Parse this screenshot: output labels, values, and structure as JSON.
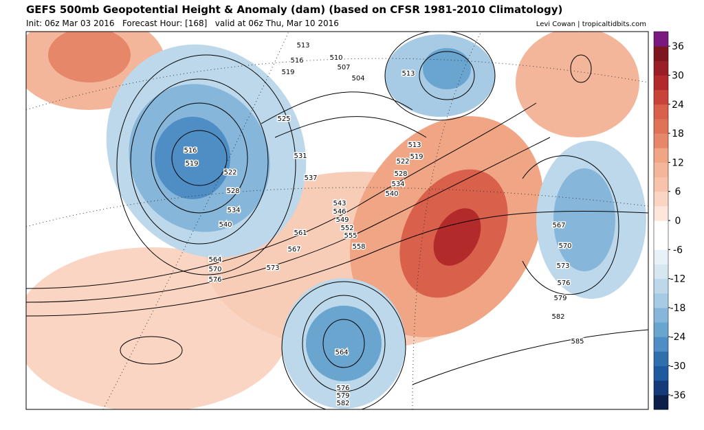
{
  "header": {
    "title": "GEFS 500mb Geopotential Height & Anomaly (dam) (based on CFSR 1981-2010 Climatology)",
    "init": "Init: 06z Mar 03 2016   Forecast Hour: [168]   valid at 06z Thu, Mar 10 2016",
    "credit": "Levi Cowan | tropicaltidbits.com"
  },
  "colorbar": {
    "lim": [
      -39,
      39
    ],
    "ticks": [
      36,
      30,
      24,
      18,
      12,
      6,
      0,
      -6,
      -12,
      -18,
      -24,
      -30,
      -36
    ]
  },
  "contour_labels": [
    "513",
    "516",
    "519",
    "510",
    "507",
    "504",
    "513",
    "525",
    "516",
    "519",
    "522",
    "528",
    "534",
    "540",
    "531",
    "537",
    "513",
    "519",
    "522",
    "528",
    "534",
    "540",
    "543",
    "546",
    "549",
    "552",
    "555",
    "558",
    "561",
    "567",
    "573",
    "564",
    "570",
    "576",
    "567",
    "570",
    "573",
    "576",
    "579",
    "582",
    "585",
    "564",
    "576",
    "579",
    "582"
  ]
}
